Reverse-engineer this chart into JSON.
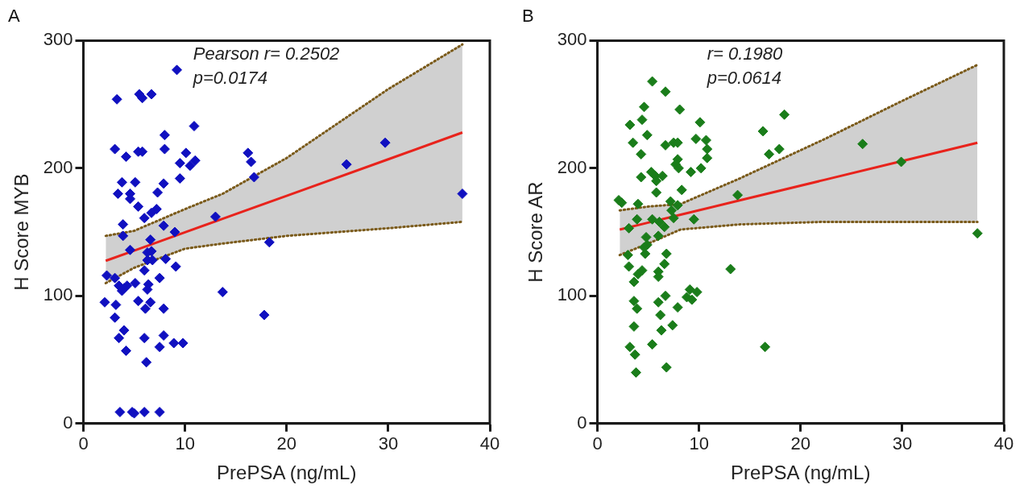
{
  "chart_data": [
    {
      "type": "scatter",
      "title": "A",
      "xlabel": "PrePSA (ng/mL)",
      "ylabel": "H Score MYB",
      "annotations": [
        "Pearson r= 0.2502",
        "p=0.0174"
      ],
      "xlim": [
        0,
        40
      ],
      "xticks": [
        0,
        10,
        20,
        30,
        40
      ],
      "ylim": [
        0,
        300
      ],
      "yticks": [
        0,
        100,
        200,
        300
      ],
      "grid": false,
      "legend": false,
      "marker": "diamond",
      "series": [
        {
          "color": "#1010c0",
          "x": [
            9.2,
            3.3,
            5.5,
            5.8,
            6.7,
            10.9,
            8.0,
            8.0,
            3.1,
            4.2,
            5.4,
            5.8,
            10.1,
            9.5,
            10.5,
            11.0,
            9.5,
            3.8,
            5.1,
            7.9,
            3.4,
            4.6,
            4.6,
            7.3,
            5.4,
            7.2,
            6.7,
            6.0,
            3.9,
            13.0,
            3.9,
            7.9,
            9.0,
            6.6,
            4.6,
            6.3,
            6.7,
            6.3,
            6.8,
            8.1,
            9.1,
            6.0,
            2.3,
            3.1,
            7.5,
            3.5,
            4.0,
            4.3,
            3.8,
            5.1,
            6.4,
            6.3,
            2.1,
            3.2,
            5.4,
            6.6,
            6.1,
            7.9,
            3.1,
            4.0,
            3.5,
            6.0,
            7.9,
            7.5,
            8.9,
            9.8,
            4.2,
            6.2,
            3.6,
            4.8,
            5.0,
            6.0,
            7.5,
            13.7,
            16.2,
            16.5,
            16.8,
            25.9,
            29.7,
            37.3,
            18.3,
            17.8
          ],
          "values": [
            277,
            254,
            258,
            255,
            258,
            233,
            226,
            215,
            215,
            209,
            213,
            213,
            212,
            204,
            202,
            206,
            192,
            189,
            189,
            188,
            180,
            180,
            176,
            181,
            170,
            168,
            165,
            161,
            156,
            162,
            147,
            155,
            150,
            144,
            136,
            134,
            135,
            128,
            128,
            129,
            123,
            120,
            116,
            114,
            114,
            108,
            106,
            108,
            104,
            110,
            109,
            105,
            95,
            93,
            96,
            95,
            90,
            90,
            83,
            73,
            67,
            67,
            69,
            60,
            63,
            63,
            57,
            48,
            9,
            9,
            8,
            9,
            9,
            103,
            212,
            205,
            193,
            203,
            220,
            180,
            142,
            85
          ]
        },
        {
          "type": "line",
          "color": "#e8231c",
          "marker": "none",
          "x": [
            2.2,
            5,
            10,
            13.7,
            20,
            30,
            37.3
          ],
          "values": [
            127.5,
            135.5,
            149.8,
            160.4,
            178.4,
            207,
            228
          ],
          "lower": [
            110,
            122,
            137,
            141,
            147,
            153,
            158
          ],
          "upper": [
            147,
            151,
            168,
            180,
            208,
            262,
            297
          ]
        },
        {
          "type": "line",
          "color": "#7a5a1a",
          "marker": "none",
          "line_style": "dotted",
          "x": [
            2.2,
            5,
            10,
            13.7,
            20,
            30,
            37.3
          ],
          "values": [
            110,
            122,
            137,
            141,
            147,
            153,
            158
          ]
        },
        {
          "type": "line",
          "color": "#7a5a1a",
          "marker": "none",
          "line_style": "dotted",
          "x": [
            2.2,
            5,
            10,
            13.7,
            20,
            30,
            37.3
          ],
          "values": [
            147,
            151,
            168,
            180,
            208,
            262,
            297
          ]
        }
      ]
    },
    {
      "type": "scatter",
      "title": "B",
      "xlabel": "PrePSA (ng/mL)",
      "ylabel": "H Score AR",
      "annotations": [
        "r= 0.1980",
        "p=0.0614"
      ],
      "xlim": [
        0,
        40
      ],
      "xticks": [
        0,
        10,
        20,
        30,
        40
      ],
      "ylim": [
        0,
        300
      ],
      "yticks": [
        0,
        100,
        200,
        300
      ],
      "grid": false,
      "legend": false,
      "marker": "diamond",
      "series": [
        {
          "color": "#1a7d1a",
          "x": [
            5.4,
            6.7,
            4.6,
            8.1,
            3.2,
            4.4,
            10.1,
            4.9,
            3.5,
            6.7,
            7.5,
            7.9,
            9.7,
            10.7,
            10.8,
            10.8,
            4.3,
            7.9,
            7.7,
            8.0,
            5.3,
            5.7,
            6.4,
            10.2,
            9.2,
            4.3,
            5.8,
            5.8,
            8.3,
            2.1,
            2.4,
            4.0,
            7.2,
            7.9,
            7.3,
            3.9,
            5.4,
            7.5,
            6.1,
            6.6,
            9.5,
            3.1,
            6.0,
            4.8,
            4.9,
            4.6,
            3.0,
            4.7,
            6.8,
            6.6,
            3.1,
            4.4,
            4.0,
            6.0,
            6.0,
            3.6,
            13.1,
            6.7,
            3.6,
            3.9,
            6.0,
            7.9,
            6.2,
            9.1,
            9.8,
            8.8,
            9.3,
            3.6,
            6.3,
            7.4,
            3.2,
            3.7,
            5.4,
            3.8,
            6.8,
            18.4,
            16.3,
            16.9,
            17.9,
            26.1,
            29.9,
            37.4,
            16.5,
            13.8
          ],
          "values": [
            268,
            260,
            248,
            246,
            234,
            238,
            236,
            226,
            220,
            218,
            220,
            220,
            223,
            222,
            215,
            208,
            211,
            207,
            203,
            200,
            197,
            194,
            194,
            200,
            197,
            193,
            190,
            181,
            183,
            175,
            173,
            172,
            174,
            171,
            167,
            160,
            160,
            161,
            158,
            154,
            160,
            153,
            147,
            146,
            140,
            138,
            132,
            133,
            133,
            125,
            123,
            120,
            117,
            119,
            115,
            111,
            121,
            100,
            96,
            90,
            95,
            91,
            85,
            105,
            103,
            99,
            97,
            76,
            73,
            77,
            60,
            54,
            62,
            40,
            44,
            242,
            229,
            211,
            215,
            219,
            205,
            149,
            60,
            179
          ]
        },
        {
          "type": "line",
          "color": "#e8231c",
          "marker": "none",
          "x": [
            2.2,
            5,
            8.2,
            14,
            22.4,
            29.8,
            37.4
          ],
          "values": [
            152,
            157.4,
            163.6,
            174.8,
            191,
            205.3,
            220
          ],
          "lower": [
            132,
            141,
            152,
            156,
            158,
            158,
            158
          ],
          "upper": [
            167,
            170,
            172,
            192,
            223,
            252,
            281
          ]
        },
        {
          "type": "line",
          "color": "#7a5a1a",
          "marker": "none",
          "line_style": "dotted",
          "x": [
            2.2,
            5,
            8.2,
            14,
            22.4,
            29.8,
            37.4
          ],
          "values": [
            132,
            141,
            152,
            156,
            158,
            158,
            158
          ]
        },
        {
          "type": "line",
          "color": "#7a5a1a",
          "marker": "none",
          "line_style": "dotted",
          "x": [
            2.2,
            5,
            8.2,
            14,
            22.4,
            29.8,
            37.4
          ],
          "values": [
            167,
            170,
            172,
            192,
            223,
            252,
            281
          ]
        }
      ]
    }
  ]
}
